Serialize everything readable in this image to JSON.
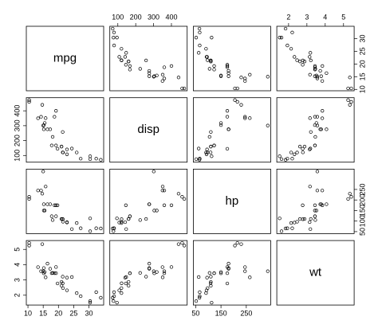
{
  "chart_data": {
    "type": "scatter_matrix",
    "variables": [
      {
        "name": "mpg",
        "values": [
          21,
          21,
          22.8,
          21.4,
          18.7,
          18.1,
          14.3,
          24.4,
          22.8,
          19.2,
          17.8,
          16.4,
          17.3,
          15.2,
          10.4,
          10.4,
          14.7,
          32.4,
          30.4,
          33.9,
          21.5,
          15.5,
          15.2,
          13.3,
          19.2,
          27.3,
          26,
          30.4,
          15.8,
          19.7,
          15,
          21.4
        ],
        "lim": [
          9.46,
          34.84
        ],
        "xticks": [
          10,
          15,
          20,
          25,
          30
        ],
        "yticks": [
          10,
          15,
          20,
          25,
          30
        ]
      },
      {
        "name": "disp",
        "values": [
          160,
          160,
          108,
          258,
          360,
          225,
          360,
          146.7,
          140.8,
          167.6,
          167.6,
          275.8,
          275.8,
          275.8,
          472,
          460,
          440,
          78.7,
          75.7,
          71.1,
          120.1,
          318,
          304,
          350,
          400,
          79,
          120.3,
          95.1,
          351,
          145,
          301,
          121
        ],
        "lim": [
          55.06,
          488.04
        ],
        "xticks": [
          100,
          200,
          300,
          400
        ],
        "yticks": [
          100,
          200,
          300,
          400
        ]
      },
      {
        "name": "hp",
        "values": [
          110,
          110,
          93,
          110,
          175,
          105,
          245,
          62,
          95,
          123,
          123,
          180,
          180,
          180,
          205,
          215,
          230,
          66,
          52,
          65,
          97,
          150,
          150,
          245,
          175,
          66,
          91,
          113,
          264,
          175,
          335,
          109
        ],
        "lim": [
          40.68,
          346.32
        ],
        "xticks": [
          50,
          150,
          250
        ],
        "yticks": [
          50,
          100,
          150,
          200,
          250
        ]
      },
      {
        "name": "wt",
        "values": [
          2.62,
          2.875,
          2.32,
          3.215,
          3.44,
          3.46,
          3.57,
          3.19,
          3.15,
          3.44,
          3.44,
          4.07,
          3.73,
          3.78,
          5.25,
          5.424,
          5.345,
          2.2,
          1.615,
          1.835,
          2.465,
          3.52,
          3.435,
          3.84,
          3.845,
          1.935,
          2.14,
          1.513,
          3.17,
          2.77,
          3.57,
          2.78
        ],
        "lim": [
          1.357,
          5.58
        ],
        "xticks": [
          2,
          3,
          4,
          5
        ],
        "yticks": [
          2,
          3,
          4,
          5
        ]
      }
    ]
  }
}
